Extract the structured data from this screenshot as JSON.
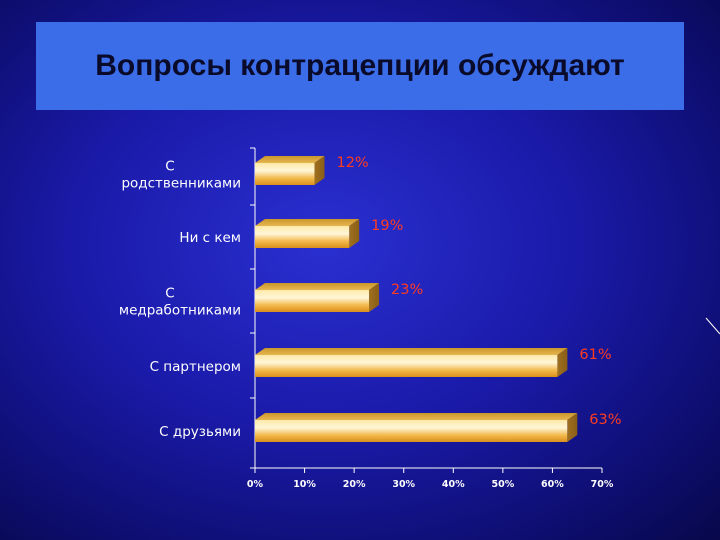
{
  "title": "Вопросы контрацепции обсуждают",
  "chart_data": {
    "type": "bar",
    "orientation": "horizontal",
    "style": "3d",
    "categories": [
      [
        "С",
        "родственниками"
      ],
      [
        "Ни с кем"
      ],
      [
        "С",
        "медработниками"
      ],
      [
        "С партнером"
      ],
      [
        "С друзьями"
      ]
    ],
    "values": [
      12,
      19,
      23,
      61,
      63
    ],
    "value_labels": [
      "12%",
      "19%",
      "23%",
      "61%",
      "63%"
    ],
    "xlim": [
      0,
      70
    ],
    "xticks": [
      "0%",
      "10%",
      "20%",
      "30%",
      "40%",
      "50%",
      "60%",
      "70%"
    ],
    "grid": false,
    "bar_color": "#f7c45a",
    "label_color": "#ff3b1f"
  }
}
